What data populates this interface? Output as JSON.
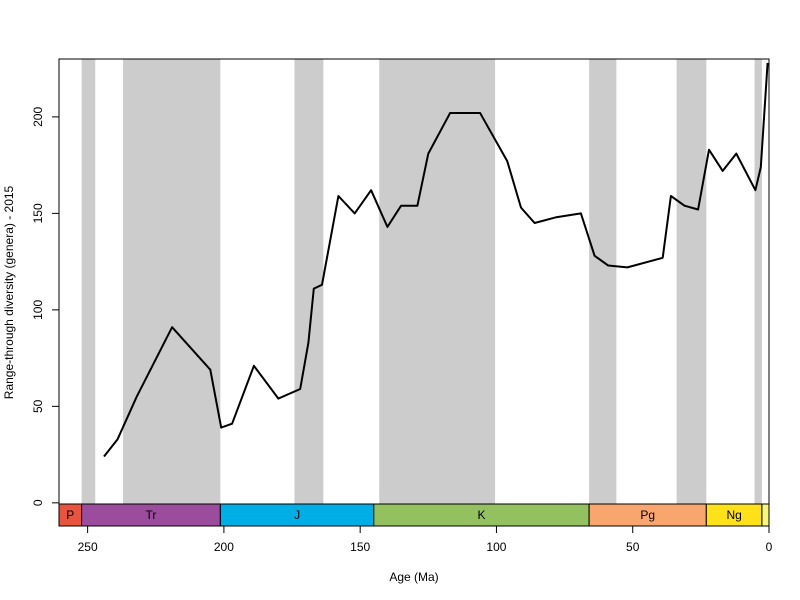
{
  "chart_data": {
    "type": "line",
    "title": "",
    "xlabel": "Age (Ma)",
    "ylabel": "Range-through diversity (genera) - 2015",
    "xlim": [
      260.5,
      0
    ],
    "ylim": [
      -12,
      230
    ],
    "x_ticks": [
      250,
      200,
      150,
      100,
      50,
      0
    ],
    "y_ticks": [
      0,
      50,
      100,
      150,
      200
    ],
    "grid": false,
    "legend": "none",
    "line_color": "#000000",
    "band_color": "#cccccc",
    "shaded_bands": [
      [
        252.2,
        247.2
      ],
      [
        237.0,
        201.3
      ],
      [
        174.1,
        163.5
      ],
      [
        143.0,
        100.5
      ],
      [
        66.0,
        56.0
      ],
      [
        33.9,
        23.0
      ],
      [
        5.3,
        2.6
      ]
    ],
    "series": [
      {
        "points": [
          [
            244,
            24
          ],
          [
            239,
            33
          ],
          [
            232,
            55
          ],
          [
            219,
            91
          ],
          [
            205,
            69
          ],
          [
            201,
            39
          ],
          [
            197,
            41
          ],
          [
            189,
            71
          ],
          [
            180,
            54
          ],
          [
            172,
            59
          ],
          [
            169,
            83
          ],
          [
            167,
            111
          ],
          [
            164,
            113
          ],
          [
            158,
            159
          ],
          [
            152,
            150
          ],
          [
            146,
            162
          ],
          [
            140,
            143
          ],
          [
            135,
            154
          ],
          [
            129,
            154
          ],
          [
            125,
            181
          ],
          [
            117,
            202
          ],
          [
            106,
            202
          ],
          [
            96,
            177
          ],
          [
            91,
            153
          ],
          [
            86,
            145
          ],
          [
            78,
            148
          ],
          [
            69,
            150
          ],
          [
            64,
            128
          ],
          [
            59,
            123
          ],
          [
            52,
            122
          ],
          [
            39,
            127
          ],
          [
            36,
            159
          ],
          [
            31,
            154
          ],
          [
            26,
            152
          ],
          [
            22,
            183
          ],
          [
            17,
            172
          ],
          [
            12,
            181
          ],
          [
            5,
            162
          ],
          [
            3,
            174
          ],
          [
            0.5,
            228
          ]
        ]
      }
    ],
    "periods": [
      {
        "label": "P",
        "start": 260.5,
        "end": 252.2,
        "color": "#E8553E"
      },
      {
        "label": "Tr",
        "start": 252.2,
        "end": 201.3,
        "color": "#9B4C9C"
      },
      {
        "label": "J",
        "start": 201.3,
        "end": 145.0,
        "color": "#00AEE6"
      },
      {
        "label": "K",
        "start": 145.0,
        "end": 66.0,
        "color": "#94C160"
      },
      {
        "label": "Pg",
        "start": 66.0,
        "end": 23.0,
        "color": "#F9A66E"
      },
      {
        "label": "Ng",
        "start": 23.0,
        "end": 2.6,
        "color": "#FFE119"
      },
      {
        "label": "",
        "start": 2.6,
        "end": 0,
        "color": "#F9F67F"
      }
    ]
  }
}
